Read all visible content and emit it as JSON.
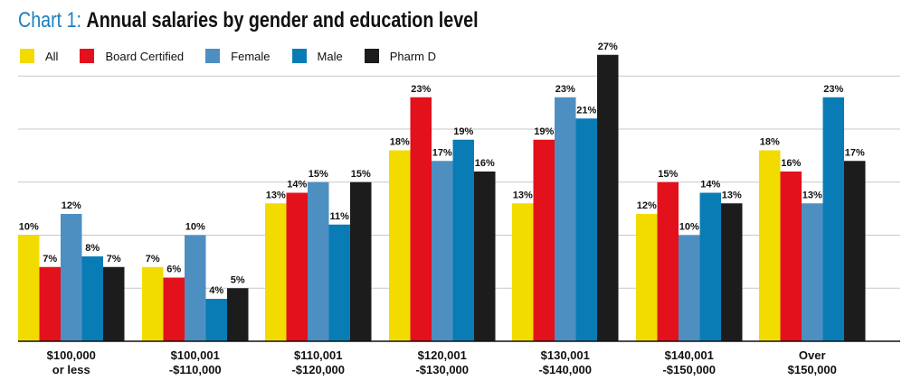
{
  "header": {
    "title_prefix": "Chart 1:",
    "title_main": "Annual salaries by gender and education level"
  },
  "chart_data": {
    "type": "bar",
    "title": "Chart 1: Annual salaries by gender and education level",
    "xlabel": "",
    "ylabel": "",
    "ylim": [
      0,
      27
    ],
    "grid": true,
    "legend_position": "top-left",
    "categories": [
      [
        "$100,000",
        "or less"
      ],
      [
        "$100,001",
        "-$110,000"
      ],
      [
        "$110,001",
        "-$120,000"
      ],
      [
        "$120,001",
        "-$130,000"
      ],
      [
        "$130,001",
        "-$140,000"
      ],
      [
        "$140,001",
        "-$150,000"
      ],
      [
        "Over",
        "$150,000"
      ]
    ],
    "series": [
      {
        "name": "All",
        "color": "#f2dc00",
        "values": [
          10,
          7,
          13,
          18,
          13,
          12,
          18
        ]
      },
      {
        "name": "Board Certified",
        "color": "#e3111b",
        "values": [
          7,
          6,
          14,
          23,
          19,
          15,
          16
        ]
      },
      {
        "name": "Female",
        "color": "#4e8fc2",
        "values": [
          12,
          10,
          15,
          17,
          23,
          10,
          13
        ]
      },
      {
        "name": "Male",
        "color": "#0a7cb5",
        "values": [
          8,
          4,
          11,
          19,
          21,
          14,
          23
        ]
      },
      {
        "name": "Pharm D",
        "color": "#1c1c1c",
        "values": [
          7,
          5,
          15,
          16,
          27,
          13,
          17
        ]
      }
    ],
    "value_suffix": "%"
  }
}
